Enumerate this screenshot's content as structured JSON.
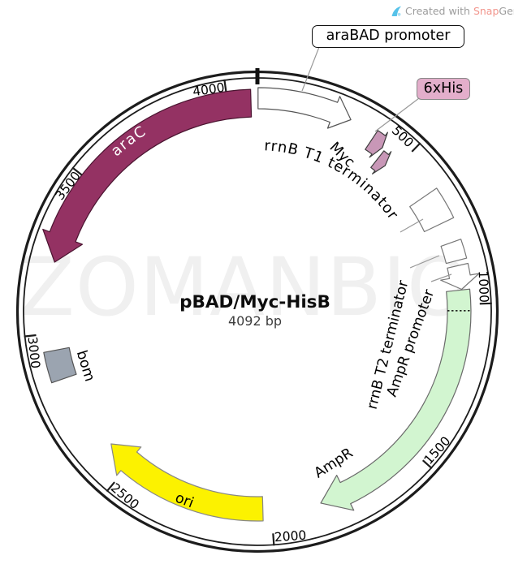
{
  "attribution": {
    "prefix": "Created with ",
    "brand_snap": "Snap",
    "brand_gene": "Gene",
    "registered": "®"
  },
  "watermark": "ZOMANBIO",
  "plasmid": {
    "name": "pBAD/Myc-HisB",
    "size_label": "4092 bp",
    "total_bp": 4092
  },
  "callouts": {
    "arabad": "araBAD promoter",
    "sixhis": "6xHis"
  },
  "labels": {
    "t1": "rrnB T1 terminator",
    "arac": "araC",
    "myc": "Myc",
    "t2": "rrnB T2 terminator",
    "amp_promoter": "AmpR promoter",
    "ampr": "AmpR",
    "ori": "ori",
    "bom": "bom"
  },
  "ticks": [
    500,
    1000,
    1500,
    2000,
    2500,
    3000,
    3500,
    4000
  ],
  "features": [
    {
      "name": "araBAD promoter",
      "type": "arrow",
      "from": 2,
      "to": 295,
      "neck": 238,
      "r_in": 250,
      "r_out": 276,
      "h_in": 242,
      "h_out": 284,
      "fill": "#ffffff",
      "stroke": "#555555"
    },
    {
      "name": "Myc",
      "type": "arrow",
      "from": 382,
      "to": 424,
      "neck": 409,
      "r_in": 240,
      "r_out": 268,
      "h_in": 235,
      "h_out": 273,
      "fill": "#c897b7",
      "stroke": "#3c3c3c"
    },
    {
      "name": "6xHis",
      "type": "arrow",
      "from": 434,
      "to": 468,
      "neck": 453,
      "r_in": 226,
      "r_out": 252,
      "h_in": 221,
      "h_out": 257,
      "fill": "#c897b7",
      "stroke": "#3c3c3c"
    },
    {
      "name": "rrnB T1 terminator",
      "type": "box",
      "from": 630,
      "to": 732,
      "r_in": 228,
      "r_out": 268,
      "fill": "#ffffff",
      "stroke": "#777777"
    },
    {
      "name": "rrnB T2 terminator",
      "type": "box",
      "from": 800,
      "to": 860,
      "r_in": 240,
      "r_out": 266,
      "fill": "#ffffff",
      "stroke": "#777777"
    },
    {
      "name": "AmpR promoter",
      "type": "arrow",
      "from": 876,
      "to": 952,
      "neck": 912,
      "r_in": 240,
      "r_out": 266,
      "h_in": 229,
      "h_out": 277,
      "fill": "#ffffff",
      "stroke": "#777777"
    },
    {
      "name": "AmpR",
      "type": "arrow",
      "from": 954,
      "to": 1838,
      "neck": 1752,
      "r_in": 234,
      "r_out": 263,
      "h_in": 224,
      "h_out": 272,
      "fill": "#d2f5d0",
      "stroke": "#6a6a6a",
      "separator_bp": 1020
    },
    {
      "name": "ori",
      "type": "arrow",
      "from": 2028,
      "to": 2590,
      "neck": 2508,
      "r_in": 228,
      "r_out": 258,
      "h_in": 220,
      "h_out": 266,
      "fill": "#fcf200",
      "stroke": "#888888"
    },
    {
      "name": "bom",
      "type": "box",
      "from": 2852,
      "to": 2946,
      "r_in": 236,
      "r_out": 268,
      "fill": "#9ba4b0",
      "stroke": "#555555"
    },
    {
      "name": "araC",
      "type": "arrow",
      "from": 4072,
      "to": 3225,
      "neck": 3308,
      "r_in": 240,
      "r_out": 274,
      "h_in": 231,
      "h_out": 283,
      "fill": "#943263",
      "stroke": "#4a1430"
    }
  ]
}
